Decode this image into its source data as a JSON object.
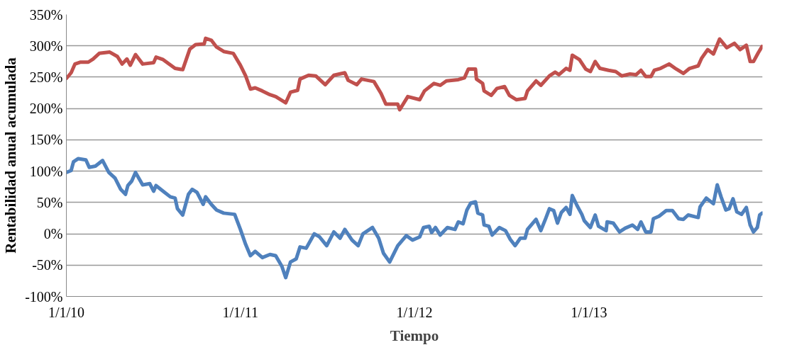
{
  "chart_data": {
    "type": "line",
    "xlabel": "Tiempo",
    "ylabel": "Rentabilidad anual acumulada",
    "xlim": [
      "2010-01-01",
      "2013-12-31"
    ],
    "xticks": [
      {
        "value": "2010-01-01",
        "label": "1/1/10"
      },
      {
        "value": "2011-01-01",
        "label": "1/1/11"
      },
      {
        "value": "2012-01-01",
        "label": "1/1/12"
      },
      {
        "value": "2013-01-01",
        "label": "1/1/13"
      }
    ],
    "ylim": [
      -100,
      350
    ],
    "yticks": [
      {
        "value": -100,
        "label": "-100%"
      },
      {
        "value": -50,
        "label": "-50%"
      },
      {
        "value": 0,
        "label": "0%"
      },
      {
        "value": 50,
        "label": "50%"
      },
      {
        "value": 100,
        "label": "100%"
      },
      {
        "value": 150,
        "label": "150%"
      },
      {
        "value": 200,
        "label": "200%"
      },
      {
        "value": 250,
        "label": "250%"
      },
      {
        "value": 300,
        "label": "300%"
      },
      {
        "value": 350,
        "label": "350%"
      }
    ],
    "grid": "y",
    "marker": "none",
    "line_style": "solid",
    "series": [
      {
        "color": "#c0504d",
        "x": [
          "2010-01-01",
          "2010-01-11",
          "2010-01-19",
          "2010-01-31",
          "2010-02-16",
          "2010-02-26",
          "2010-03-11",
          "2010-04-02",
          "2010-04-18",
          "2010-04-28",
          "2010-05-08",
          "2010-05-15",
          "2010-05-26",
          "2010-06-10",
          "2010-07-03",
          "2010-07-08",
          "2010-07-23",
          "2010-08-17",
          "2010-09-02",
          "2010-09-17",
          "2010-09-29",
          "2010-10-17",
          "2010-10-20",
          "2010-11-01",
          "2010-11-12",
          "2010-11-27",
          "2010-12-17",
          "2011-01-01",
          "2011-01-12",
          "2011-01-22",
          "2011-02-01",
          "2011-02-16",
          "2011-03-04",
          "2011-03-16",
          "2011-04-06",
          "2011-04-16",
          "2011-05-01",
          "2011-05-06",
          "2011-05-24",
          "2011-06-08",
          "2011-06-28",
          "2011-07-16",
          "2011-08-08",
          "2011-08-15",
          "2011-09-02",
          "2011-09-12",
          "2011-10-08",
          "2011-10-23",
          "2011-11-02",
          "2011-11-27",
          "2011-12-01",
          "2011-12-18",
          "2012-01-12",
          "2012-01-22",
          "2012-02-11",
          "2012-02-24",
          "2012-03-08",
          "2012-04-02",
          "2012-04-15",
          "2012-04-23",
          "2012-05-08",
          "2012-05-10",
          "2012-05-23",
          "2012-05-26",
          "2012-06-10",
          "2012-06-22",
          "2012-07-08",
          "2012-07-18",
          "2012-08-02",
          "2012-08-20",
          "2012-08-25",
          "2012-09-12",
          "2012-09-22",
          "2012-10-10",
          "2012-10-22",
          "2012-10-30",
          "2012-11-14",
          "2012-11-22",
          "2012-11-27",
          "2012-12-12",
          "2012-12-25",
          "2013-01-04",
          "2013-01-14",
          "2013-01-24",
          "2013-02-11",
          "2013-02-26",
          "2013-03-11",
          "2013-03-28",
          "2013-04-10",
          "2013-04-20",
          "2013-04-30",
          "2013-05-11",
          "2013-05-18",
          "2013-05-31",
          "2013-06-18",
          "2013-07-03",
          "2013-07-18",
          "2013-07-31",
          "2013-08-18",
          "2013-08-25",
          "2013-09-07",
          "2013-09-19",
          "2013-10-02",
          "2013-10-17",
          "2013-11-02",
          "2013-11-14",
          "2013-11-27",
          "2013-12-05",
          "2013-12-12",
          "2013-12-22",
          "2013-12-30"
        ],
        "values": [
          248,
          257,
          271,
          274,
          274,
          279,
          288,
          290,
          283,
          271,
          279,
          269,
          286,
          271,
          273,
          282,
          278,
          264,
          262,
          295,
          302,
          303,
          312,
          309,
          298,
          291,
          288,
          269,
          252,
          231,
          233,
          228,
          222,
          219,
          209,
          226,
          229,
          247,
          253,
          252,
          238,
          253,
          257,
          245,
          238,
          247,
          243,
          224,
          207,
          207,
          198,
          219,
          214,
          228,
          240,
          237,
          244,
          246,
          249,
          263,
          263,
          247,
          240,
          228,
          221,
          232,
          235,
          221,
          214,
          216,
          228,
          244,
          237,
          252,
          258,
          254,
          264,
          261,
          285,
          278,
          263,
          259,
          275,
          264,
          261,
          259,
          252,
          255,
          254,
          261,
          251,
          251,
          261,
          264,
          271,
          263,
          256,
          264,
          268,
          280,
          294,
          287,
          311,
          297,
          304,
          294,
          301,
          275,
          275,
          289,
          299
        ]
      },
      {
        "color": "#4f81bd",
        "x": [
          "2010-01-01",
          "2010-01-11",
          "2010-01-16",
          "2010-01-26",
          "2010-02-11",
          "2010-02-18",
          "2010-03-03",
          "2010-03-18",
          "2010-03-31",
          "2010-04-13",
          "2010-04-25",
          "2010-05-05",
          "2010-05-10",
          "2010-05-18",
          "2010-05-26",
          "2010-06-10",
          "2010-06-25",
          "2010-07-03",
          "2010-07-08",
          "2010-07-23",
          "2010-08-07",
          "2010-08-17",
          "2010-08-22",
          "2010-09-02",
          "2010-09-14",
          "2010-09-22",
          "2010-10-02",
          "2010-10-15",
          "2010-10-20",
          "2010-11-01",
          "2010-11-12",
          "2010-11-27",
          "2010-12-20",
          "2011-01-01",
          "2011-01-12",
          "2011-01-22",
          "2011-02-01",
          "2011-02-16",
          "2011-03-04",
          "2011-03-16",
          "2011-03-29",
          "2011-04-06",
          "2011-04-16",
          "2011-04-28",
          "2011-05-06",
          "2011-05-19",
          "2011-06-05",
          "2011-06-16",
          "2011-07-01",
          "2011-07-16",
          "2011-07-29",
          "2011-08-08",
          "2011-08-23",
          "2011-09-05",
          "2011-09-15",
          "2011-10-05",
          "2011-10-18",
          "2011-10-28",
          "2011-11-10",
          "2011-11-27",
          "2011-12-15",
          "2011-12-28",
          "2012-01-12",
          "2012-01-20",
          "2012-02-01",
          "2012-02-06",
          "2012-02-14",
          "2012-02-24",
          "2012-03-10",
          "2012-03-26",
          "2012-04-02",
          "2012-04-12",
          "2012-04-20",
          "2012-04-28",
          "2012-05-08",
          "2012-05-13",
          "2012-05-23",
          "2012-05-26",
          "2012-06-05",
          "2012-06-12",
          "2012-06-27",
          "2012-07-10",
          "2012-07-20",
          "2012-07-30",
          "2012-08-10",
          "2012-08-20",
          "2012-08-25",
          "2012-09-12",
          "2012-09-22",
          "2012-10-02",
          "2012-10-10",
          "2012-10-19",
          "2012-10-27",
          "2012-11-04",
          "2012-11-14",
          "2012-11-22",
          "2012-11-27",
          "2012-12-07",
          "2012-12-17",
          "2012-12-22",
          "2013-01-04",
          "2013-01-14",
          "2013-01-21",
          "2013-02-06",
          "2013-02-08",
          "2013-02-21",
          "2013-03-06",
          "2013-03-18",
          "2013-04-02",
          "2013-04-13",
          "2013-04-20",
          "2013-04-30",
          "2013-05-11",
          "2013-05-16",
          "2013-05-28",
          "2013-06-12",
          "2013-06-25",
          "2013-07-08",
          "2013-07-18",
          "2013-07-28",
          "2013-08-18",
          "2013-08-22",
          "2013-09-04",
          "2013-09-19",
          "2013-09-27",
          "2013-10-05",
          "2013-10-15",
          "2013-10-22",
          "2013-10-30",
          "2013-11-07",
          "2013-11-17",
          "2013-11-27",
          "2013-12-05",
          "2013-12-12",
          "2013-12-20",
          "2013-12-25",
          "2013-12-30"
        ],
        "values": [
          98,
          101,
          115,
          120,
          118,
          106,
          108,
          117,
          98,
          89,
          71,
          63,
          77,
          84,
          98,
          78,
          80,
          68,
          77,
          68,
          59,
          57,
          40,
          30,
          63,
          71,
          66,
          47,
          59,
          47,
          38,
          33,
          31,
          7,
          -17,
          -35,
          -28,
          -38,
          -33,
          -35,
          -52,
          -70,
          -45,
          -40,
          -21,
          -23,
          0,
          -5,
          -19,
          3,
          -7,
          7,
          -10,
          -19,
          0,
          10,
          -7,
          -31,
          -45,
          -19,
          -3,
          -10,
          -5,
          10,
          12,
          2,
          10,
          -2,
          10,
          7,
          19,
          16,
          38,
          49,
          51,
          33,
          30,
          14,
          12,
          -2,
          10,
          5,
          -9,
          -19,
          -7,
          -7,
          7,
          23,
          5,
          24,
          40,
          37,
          17,
          34,
          42,
          31,
          61,
          45,
          31,
          21,
          10,
          30,
          12,
          5,
          19,
          17,
          3,
          9,
          14,
          7,
          19,
          3,
          3,
          24,
          28,
          37,
          37,
          24,
          23,
          30,
          26,
          43,
          57,
          48,
          78,
          59,
          38,
          40,
          56,
          35,
          31,
          42,
          14,
          3,
          10,
          30,
          33
        ]
      }
    ]
  }
}
